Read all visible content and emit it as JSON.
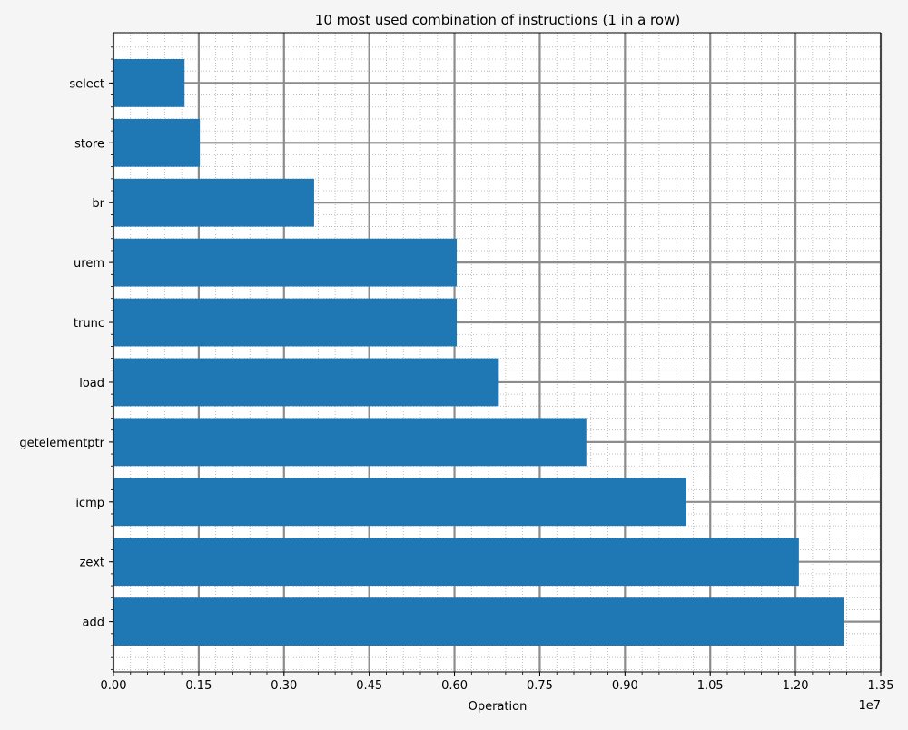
{
  "chart_data": {
    "type": "bar",
    "orientation": "horizontal",
    "title": "10 most used combination of instructions (1 in a row)",
    "xlabel": "Operation",
    "ylabel": "",
    "x_offset_text": "1e7",
    "xlim": [
      0,
      13500000.0
    ],
    "xticks": [
      0.0,
      1500000.0,
      3000000.0,
      4500000.0,
      6000000.0,
      7500000.0,
      9000000.0,
      10500000.0,
      12000000.0,
      13500000.0
    ],
    "xtick_labels": [
      "0.00",
      "0.15",
      "0.30",
      "0.45",
      "0.60",
      "0.75",
      "0.90",
      "1.05",
      "1.20",
      "1.35"
    ],
    "categories": [
      "add",
      "zext",
      "icmp",
      "getelementptr",
      "load",
      "trunc",
      "urem",
      "br",
      "store",
      "select"
    ],
    "values": [
      12850000,
      12060000,
      10080000,
      8320000,
      6780000,
      6040000,
      6040000,
      3530000,
      1520000,
      1250000
    ],
    "bar_color": "#1f77b4",
    "grid": true,
    "minor_grid": true,
    "grid_major_color": "#8c8c8c",
    "grid_minor_color": "#b0b0b0",
    "background_color": "#f5f5f5",
    "plot_background_color": "#ffffff"
  }
}
